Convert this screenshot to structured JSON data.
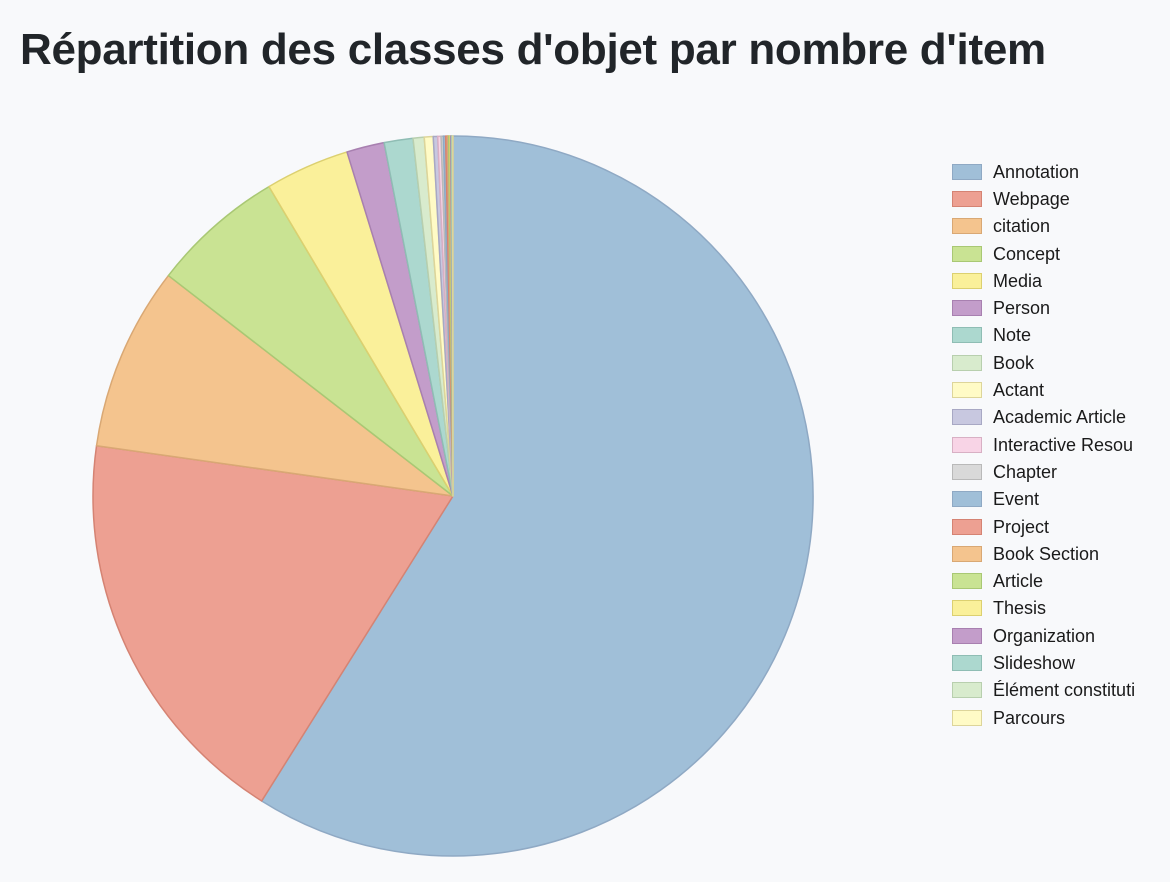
{
  "title": "Répartition des classes d'objet par nombre d'item",
  "chart_data": {
    "type": "pie",
    "title": "Répartition des classes d'objet par nombre d'item",
    "legend_position": "right",
    "slices": [
      {
        "label": "Annotation",
        "value": 59.2,
        "color": "#a0bfd8",
        "stroke": "#8fa9c4"
      },
      {
        "label": "Webpage",
        "value": 18.4,
        "color": "#eda092",
        "stroke": "#d58373"
      },
      {
        "label": "citation",
        "value": 8.3,
        "color": "#f4c48e",
        "stroke": "#d9a874"
      },
      {
        "label": "Concept",
        "value": 6.0,
        "color": "#c9e393",
        "stroke": "#a9c874"
      },
      {
        "label": "Media",
        "value": 3.8,
        "color": "#faf09a",
        "stroke": "#dcd070"
      },
      {
        "label": "Person",
        "value": 1.7,
        "color": "#c39dca",
        "stroke": "#a880b0"
      },
      {
        "label": "Note",
        "value": 1.3,
        "color": "#acd8cf",
        "stroke": "#8fbdb4"
      },
      {
        "label": "Book",
        "value": 0.5,
        "color": "#d8ebcd",
        "stroke": "#b8cfae"
      },
      {
        "label": "Actant",
        "value": 0.4,
        "color": "#fffbc6",
        "stroke": "#ddd59a"
      },
      {
        "label": "Academic Article",
        "value": 0.2,
        "color": "#c8c8e0",
        "stroke": "#a8a8c4"
      },
      {
        "label": "Interactive Resource",
        "value": 0.15,
        "color": "#f8d4e6",
        "stroke": "#d8b0c4"
      },
      {
        "label": "Chapter",
        "value": 0.1,
        "color": "#d9d9d9",
        "stroke": "#b9b9b9"
      },
      {
        "label": "Event",
        "value": 0.1,
        "color": "#a0bfd8",
        "stroke": "#8fa9c4"
      },
      {
        "label": "Project",
        "value": 0.08,
        "color": "#eda092",
        "stroke": "#d58373"
      },
      {
        "label": "Book Section",
        "value": 0.06,
        "color": "#f4c48e",
        "stroke": "#d9a874"
      },
      {
        "label": "Article",
        "value": 0.05,
        "color": "#c9e393",
        "stroke": "#a9c874"
      },
      {
        "label": "Thesis",
        "value": 0.04,
        "color": "#faf09a",
        "stroke": "#dcd070"
      },
      {
        "label": "Organization",
        "value": 0.03,
        "color": "#c39dca",
        "stroke": "#a880b0"
      },
      {
        "label": "Slideshow",
        "value": 0.03,
        "color": "#acd8cf",
        "stroke": "#8fbdb4"
      },
      {
        "label": "Élément constitutif",
        "value": 0.02,
        "color": "#d8ebcd",
        "stroke": "#b8cfae"
      },
      {
        "label": "Parcours",
        "value": 0.02,
        "color": "#fffbc6",
        "stroke": "#ddd59a"
      }
    ]
  }
}
